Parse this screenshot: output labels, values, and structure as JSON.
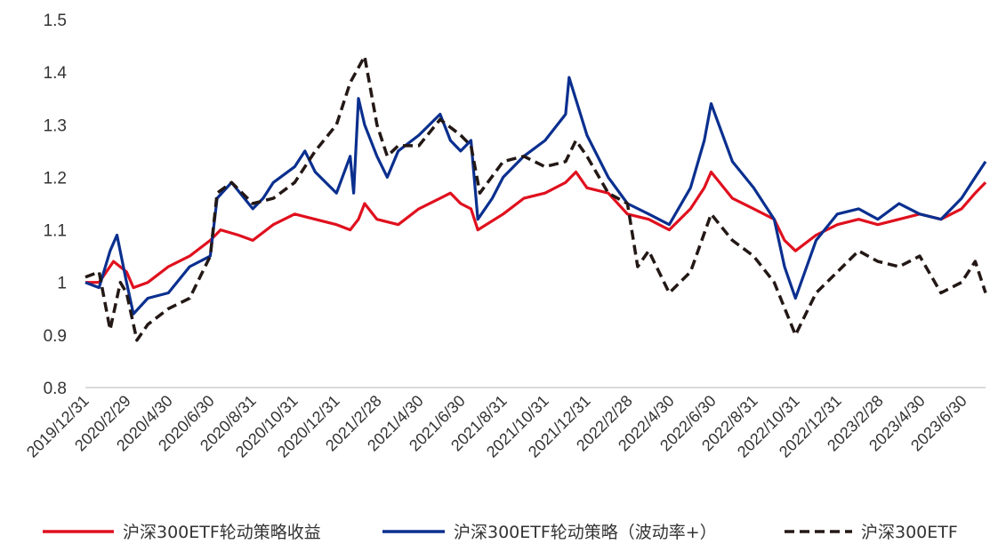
{
  "chart_data": {
    "type": "line",
    "title": "",
    "xlabel": "",
    "ylabel": "",
    "ylim": [
      0.8,
      1.5
    ],
    "y_ticks": [
      "1.5",
      "1.4",
      "1.3",
      "1.2",
      "1.1",
      "1",
      "0.9",
      "0.8"
    ],
    "y_tick_values": [
      1.5,
      1.4,
      1.3,
      1.2,
      1.1,
      1.0,
      0.9,
      0.8
    ],
    "x_ticks": [
      "2019/12/31",
      "2020/2/29",
      "2020/4/30",
      "2020/6/30",
      "2020/8/31",
      "2020/10/31",
      "2020/12/31",
      "2021/2/28",
      "2021/4/30",
      "2021/6/30",
      "2021/8/31",
      "2021/10/31",
      "2021/12/31",
      "2022/2/28",
      "2022/4/30",
      "2022/6/30",
      "2022/8/31",
      "2022/10/31",
      "2022/12/31",
      "2023/2/28",
      "2023/4/30",
      "2023/6/30"
    ],
    "grid": false,
    "legend_position": "bottom",
    "series": [
      {
        "name": "沪深300ETF轮动策略收益",
        "color": "#e0101e",
        "style": "solid",
        "points": [
          [
            "2019-12-31",
            1.0
          ],
          [
            "2020-01-20",
            1.0
          ],
          [
            "2020-02-10",
            1.04
          ],
          [
            "2020-02-29",
            1.02
          ],
          [
            "2020-03-10",
            0.99
          ],
          [
            "2020-03-31",
            1.0
          ],
          [
            "2020-04-30",
            1.03
          ],
          [
            "2020-05-31",
            1.05
          ],
          [
            "2020-06-30",
            1.08
          ],
          [
            "2020-07-15",
            1.1
          ],
          [
            "2020-08-10",
            1.09
          ],
          [
            "2020-08-31",
            1.08
          ],
          [
            "2020-09-30",
            1.11
          ],
          [
            "2020-10-31",
            1.13
          ],
          [
            "2020-11-30",
            1.12
          ],
          [
            "2020-12-31",
            1.11
          ],
          [
            "2021-01-20",
            1.1
          ],
          [
            "2021-02-01",
            1.12
          ],
          [
            "2021-02-10",
            1.15
          ],
          [
            "2021-02-28",
            1.12
          ],
          [
            "2021-03-31",
            1.11
          ],
          [
            "2021-04-30",
            1.14
          ],
          [
            "2021-05-31",
            1.16
          ],
          [
            "2021-06-15",
            1.17
          ],
          [
            "2021-06-30",
            1.15
          ],
          [
            "2021-07-15",
            1.14
          ],
          [
            "2021-07-25",
            1.1
          ],
          [
            "2021-08-31",
            1.13
          ],
          [
            "2021-09-30",
            1.16
          ],
          [
            "2021-10-31",
            1.17
          ],
          [
            "2021-11-30",
            1.19
          ],
          [
            "2021-12-15",
            1.21
          ],
          [
            "2021-12-31",
            1.18
          ],
          [
            "2022-01-31",
            1.17
          ],
          [
            "2022-02-28",
            1.13
          ],
          [
            "2022-03-31",
            1.12
          ],
          [
            "2022-04-30",
            1.1
          ],
          [
            "2022-05-31",
            1.14
          ],
          [
            "2022-06-20",
            1.18
          ],
          [
            "2022-06-30",
            1.21
          ],
          [
            "2022-07-31",
            1.16
          ],
          [
            "2022-08-31",
            1.14
          ],
          [
            "2022-09-30",
            1.12
          ],
          [
            "2022-10-15",
            1.08
          ],
          [
            "2022-10-31",
            1.06
          ],
          [
            "2022-11-30",
            1.09
          ],
          [
            "2022-12-31",
            1.11
          ],
          [
            "2023-01-31",
            1.12
          ],
          [
            "2023-02-28",
            1.11
          ],
          [
            "2023-03-31",
            1.12
          ],
          [
            "2023-04-30",
            1.13
          ],
          [
            "2023-05-31",
            1.12
          ],
          [
            "2023-06-30",
            1.14
          ],
          [
            "2023-07-20",
            1.17
          ],
          [
            "2023-08-04",
            1.19
          ]
        ]
      },
      {
        "name": "沪深300ETF轮动策略（波动率+）",
        "color": "#0a2f8f",
        "style": "solid",
        "points": [
          [
            "2019-12-31",
            1.0
          ],
          [
            "2020-01-20",
            0.99
          ],
          [
            "2020-02-05",
            1.06
          ],
          [
            "2020-02-15",
            1.09
          ],
          [
            "2020-02-29",
            1.0
          ],
          [
            "2020-03-10",
            0.94
          ],
          [
            "2020-03-31",
            0.97
          ],
          [
            "2020-04-30",
            0.98
          ],
          [
            "2020-05-31",
            1.03
          ],
          [
            "2020-06-30",
            1.05
          ],
          [
            "2020-07-10",
            1.16
          ],
          [
            "2020-07-31",
            1.19
          ],
          [
            "2020-08-31",
            1.14
          ],
          [
            "2020-09-15",
            1.16
          ],
          [
            "2020-09-30",
            1.19
          ],
          [
            "2020-10-31",
            1.22
          ],
          [
            "2020-11-15",
            1.25
          ],
          [
            "2020-11-30",
            1.21
          ],
          [
            "2020-12-31",
            1.17
          ],
          [
            "2021-01-20",
            1.24
          ],
          [
            "2021-01-25",
            1.17
          ],
          [
            "2021-02-01",
            1.35
          ],
          [
            "2021-02-10",
            1.3
          ],
          [
            "2021-02-28",
            1.24
          ],
          [
            "2021-03-15",
            1.2
          ],
          [
            "2021-03-31",
            1.25
          ],
          [
            "2021-04-30",
            1.28
          ],
          [
            "2021-05-31",
            1.32
          ],
          [
            "2021-06-15",
            1.27
          ],
          [
            "2021-06-30",
            1.25
          ],
          [
            "2021-07-15",
            1.27
          ],
          [
            "2021-07-25",
            1.12
          ],
          [
            "2021-08-15",
            1.16
          ],
          [
            "2021-08-31",
            1.2
          ],
          [
            "2021-09-30",
            1.24
          ],
          [
            "2021-10-31",
            1.27
          ],
          [
            "2021-11-30",
            1.32
          ],
          [
            "2021-12-05",
            1.39
          ],
          [
            "2021-12-31",
            1.28
          ],
          [
            "2022-01-31",
            1.2
          ],
          [
            "2022-02-28",
            1.15
          ],
          [
            "2022-03-31",
            1.13
          ],
          [
            "2022-04-30",
            1.11
          ],
          [
            "2022-05-31",
            1.18
          ],
          [
            "2022-06-20",
            1.27
          ],
          [
            "2022-06-30",
            1.34
          ],
          [
            "2022-07-31",
            1.23
          ],
          [
            "2022-08-31",
            1.18
          ],
          [
            "2022-09-30",
            1.12
          ],
          [
            "2022-10-15",
            1.03
          ],
          [
            "2022-10-31",
            0.97
          ],
          [
            "2022-11-30",
            1.08
          ],
          [
            "2022-12-31",
            1.13
          ],
          [
            "2023-01-31",
            1.14
          ],
          [
            "2023-02-28",
            1.12
          ],
          [
            "2023-03-31",
            1.15
          ],
          [
            "2023-04-30",
            1.13
          ],
          [
            "2023-05-31",
            1.12
          ],
          [
            "2023-06-30",
            1.16
          ],
          [
            "2023-07-20",
            1.2
          ],
          [
            "2023-08-04",
            1.23
          ]
        ]
      },
      {
        "name": "沪深300ETF",
        "color": "#231815",
        "style": "dashed",
        "points": [
          [
            "2019-12-31",
            1.01
          ],
          [
            "2020-01-20",
            1.02
          ],
          [
            "2020-02-05",
            0.91
          ],
          [
            "2020-02-20",
            1.0
          ],
          [
            "2020-02-29",
            0.98
          ],
          [
            "2020-03-15",
            0.89
          ],
          [
            "2020-03-31",
            0.92
          ],
          [
            "2020-04-30",
            0.95
          ],
          [
            "2020-05-31",
            0.97
          ],
          [
            "2020-06-30",
            1.05
          ],
          [
            "2020-07-10",
            1.17
          ],
          [
            "2020-07-31",
            1.19
          ],
          [
            "2020-08-31",
            1.15
          ],
          [
            "2020-09-30",
            1.16
          ],
          [
            "2020-10-31",
            1.19
          ],
          [
            "2020-11-30",
            1.25
          ],
          [
            "2020-12-31",
            1.3
          ],
          [
            "2021-01-20",
            1.38
          ],
          [
            "2021-02-10",
            1.43
          ],
          [
            "2021-02-28",
            1.3
          ],
          [
            "2021-03-15",
            1.24
          ],
          [
            "2021-03-31",
            1.26
          ],
          [
            "2021-04-30",
            1.26
          ],
          [
            "2021-05-31",
            1.31
          ],
          [
            "2021-06-30",
            1.28
          ],
          [
            "2021-07-15",
            1.26
          ],
          [
            "2021-07-28",
            1.17
          ],
          [
            "2021-08-31",
            1.23
          ],
          [
            "2021-09-30",
            1.24
          ],
          [
            "2021-10-31",
            1.22
          ],
          [
            "2021-11-30",
            1.23
          ],
          [
            "2021-12-15",
            1.27
          ],
          [
            "2021-12-31",
            1.24
          ],
          [
            "2022-01-31",
            1.17
          ],
          [
            "2022-02-28",
            1.15
          ],
          [
            "2022-03-15",
            1.03
          ],
          [
            "2022-03-31",
            1.06
          ],
          [
            "2022-04-30",
            0.98
          ],
          [
            "2022-05-31",
            1.02
          ],
          [
            "2022-06-30",
            1.13
          ],
          [
            "2022-07-31",
            1.08
          ],
          [
            "2022-08-31",
            1.05
          ],
          [
            "2022-09-30",
            1.0
          ],
          [
            "2022-10-31",
            0.9
          ],
          [
            "2022-11-30",
            0.98
          ],
          [
            "2022-12-31",
            1.02
          ],
          [
            "2023-01-31",
            1.06
          ],
          [
            "2023-02-28",
            1.04
          ],
          [
            "2023-03-31",
            1.03
          ],
          [
            "2023-04-30",
            1.05
          ],
          [
            "2023-05-31",
            0.98
          ],
          [
            "2023-06-30",
            1.0
          ],
          [
            "2023-07-20",
            1.04
          ],
          [
            "2023-08-04",
            0.98
          ]
        ]
      }
    ]
  }
}
